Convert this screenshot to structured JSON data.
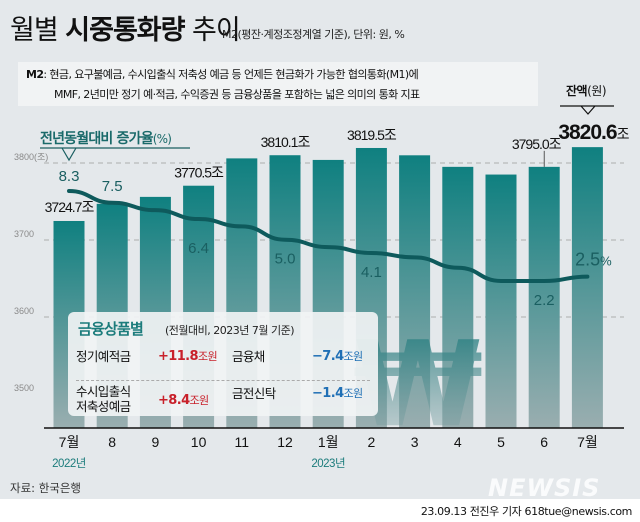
{
  "header": {
    "title_part1": "월별 ",
    "title_bold": "시중통화량",
    "title_part2": " 추이",
    "subtitle": "M2(평잔·계정조정계열 기준), 단위: 원, %"
  },
  "definition": {
    "label": "M2",
    "line1": ": 현금, 요구불예금, 수시입출식 저축성 예금 등 언제든 현금화가 가능한 협의통화(M1)에",
    "line2": "MMF, 2년미만 정기 예·적금, 수익증권 등 금융상품을 포함하는 넓은 의미의 통화 지표"
  },
  "balance_header": {
    "bold": "잔액",
    "unit": "(원)"
  },
  "yoy_header": {
    "bold": "전년동월대비 증가율",
    "unit": "(%)"
  },
  "chart_data": {
    "type": "bar",
    "title": "월별 시중통화량 추이",
    "categories": [
      "7월",
      "8",
      "9",
      "10",
      "11",
      "12",
      "1월",
      "2",
      "3",
      "4",
      "5",
      "6",
      "7월"
    ],
    "year_labels": [
      {
        "index": 0,
        "label": "2022년"
      },
      {
        "index": 6,
        "label": "2023년"
      }
    ],
    "ylabel": "조",
    "ylim": [
      3500,
      3830
    ],
    "yticks": [
      3500,
      3600,
      3700,
      3800
    ],
    "ytick_labels": [
      "3500",
      "3600",
      "3700",
      "3800(조)"
    ],
    "grid": true,
    "series": [
      {
        "name": "잔액(원)",
        "type": "bar",
        "unit": "조",
        "values": [
          3724.7,
          3747,
          3756,
          3770.5,
          3806,
          3810.1,
          3804,
          3819.5,
          3810,
          3795,
          3785,
          3795.0,
          3820.6
        ]
      },
      {
        "name": "전년동월대비 증가율(%)",
        "type": "line",
        "unit": "%",
        "values": [
          8.3,
          7.5,
          7.0,
          6.4,
          5.9,
          5.0,
          4.5,
          4.1,
          3.8,
          3.1,
          2.2,
          2.2,
          2.5
        ],
        "ylim": [
          -7,
          10
        ]
      }
    ],
    "bar_labels": [
      {
        "index": 0,
        "text": "3724.7조"
      },
      {
        "index": 3,
        "text": "3770.5조"
      },
      {
        "index": 5,
        "text": "3810.1조"
      },
      {
        "index": 7,
        "text": "3819.5조"
      },
      {
        "index": 11,
        "text": "3795.0조"
      },
      {
        "index": 12,
        "text": "3820.6",
        "suffix": "조",
        "emphasis": true
      }
    ],
    "line_labels": [
      {
        "index": 0,
        "text": "8.3"
      },
      {
        "index": 1,
        "text": "7.5"
      },
      {
        "index": 3,
        "text": "6.4"
      },
      {
        "index": 5,
        "text": "5.0"
      },
      {
        "index": 7,
        "text": "4.1"
      },
      {
        "index": 11,
        "text": "2.2"
      },
      {
        "index": 12,
        "text": "2.5",
        "suffix": "%",
        "emphasis": true
      }
    ],
    "colors": {
      "bar_top": "#0f8080",
      "bar_bottom": "#9aaeb0",
      "line": "#0e5a5c",
      "grid": "#9a9a9a"
    }
  },
  "legend": {
    "title": "금융상품별",
    "subtitle": "(전월대비, 2023년 7월 기준)",
    "items": [
      {
        "name": "정기예적금",
        "value": "+11.8",
        "unit": "조원",
        "color": "#c8202a"
      },
      {
        "name": "금융채",
        "value": "−7.4",
        "unit": "조원",
        "color": "#1f6fb5"
      },
      {
        "name": "수시입출식\n저축성예금",
        "value": "+8.4",
        "unit": "조원",
        "color": "#c8202a"
      },
      {
        "name": "금전신탁",
        "value": "−1.4",
        "unit": "조원",
        "color": "#1f6fb5"
      }
    ]
  },
  "watermark_symbol": "₩",
  "footer": {
    "source": "자료: 한국은행",
    "logo": "NEWSIS",
    "credit": "23.09.13 전진우 기자 618tue@newsis.com"
  }
}
